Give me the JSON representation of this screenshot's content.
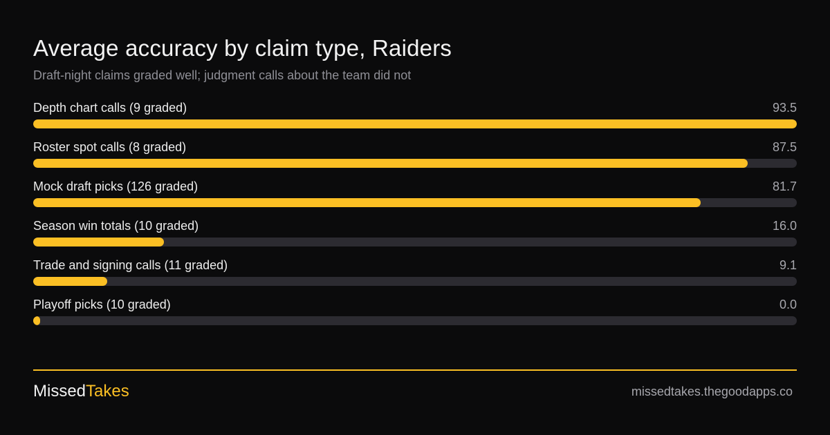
{
  "header": {
    "title": "Average accuracy by claim type, Raiders",
    "subtitle": "Draft-night claims graded well; judgment calls about the team did not"
  },
  "chart_data": {
    "type": "bar",
    "orientation": "horizontal",
    "title": "Average accuracy by claim type, Raiders",
    "subtitle": "Draft-night claims graded well; judgment calls about the team did not",
    "categories": [
      "Depth chart calls (9 graded)",
      "Roster spot calls (8 graded)",
      "Mock draft picks (126 graded)",
      "Season win totals (10 graded)",
      "Trade and signing calls (11 graded)",
      "Playoff picks (10 graded)"
    ],
    "values": [
      93.5,
      87.5,
      81.7,
      16.0,
      9.1,
      0.0
    ],
    "value_labels": [
      "93.5",
      "87.5",
      "81.7",
      "16.0",
      "9.1",
      "0.0"
    ],
    "xlim": [
      0,
      93.5
    ],
    "grid": false,
    "legend": "none"
  },
  "colors": {
    "accent": "#fbbf24",
    "track": "#2c2b31",
    "background": "#0b0b0c"
  },
  "footer": {
    "brand_part1": "Missed",
    "brand_part2": "Takes",
    "url": "missedtakes.thegoodapps.co"
  }
}
